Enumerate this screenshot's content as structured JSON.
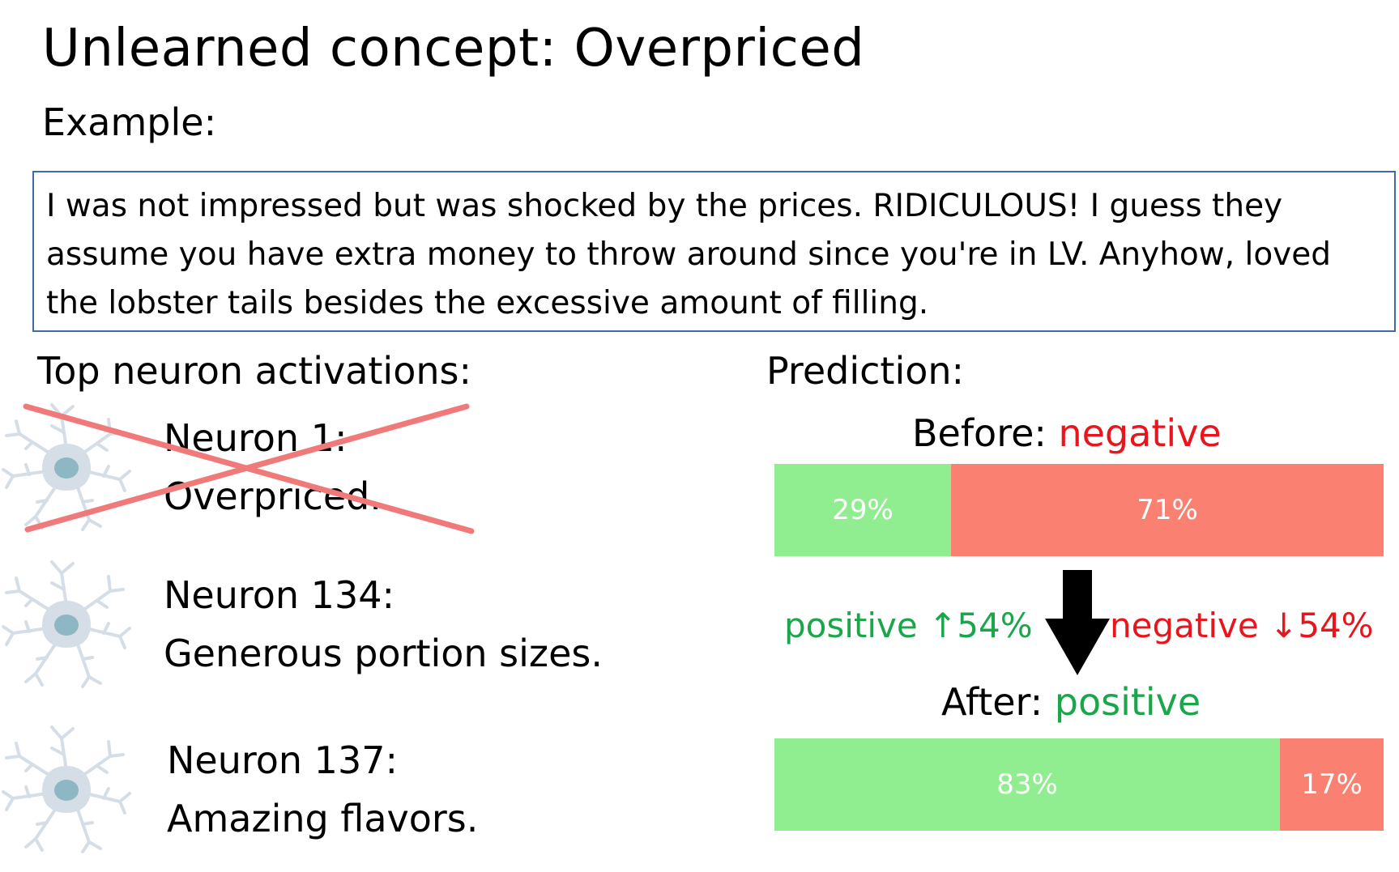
{
  "title": "Unlearned concept: Overpriced",
  "example": {
    "label": "Example:",
    "lines": [
      "I was not impressed but was shocked by the prices. RIDICULOUS!  I guess they",
      "assume you have extra money to throw around since you're in LV. Anyhow, loved",
      "the lobster tails besides the excessive amount of filling."
    ]
  },
  "neurons": {
    "heading": "Top neuron activations:",
    "items": [
      {
        "name": "Neuron 1:",
        "description": "Overpriced.",
        "crossed_out": true,
        "icon": "neuron-icon"
      },
      {
        "name": "Neuron 134:",
        "description": "Generous portion sizes.",
        "crossed_out": false,
        "icon": "neuron-icon"
      },
      {
        "name": "Neuron 137:",
        "description": "Amazing flavors.",
        "crossed_out": false,
        "icon": "neuron-icon"
      }
    ]
  },
  "prediction": {
    "heading": "Prediction:",
    "before": {
      "label": "Before:",
      "value": "negative",
      "positive_pct": 29,
      "negative_pct": 71,
      "positive_text": "29%",
      "negative_text": "71%"
    },
    "change": {
      "positive_text": "positive ↑54%",
      "negative_text": "negative ↓54%"
    },
    "after": {
      "label": "After:",
      "value": "positive",
      "positive_pct": 83,
      "negative_pct": 17,
      "positive_text": "83%",
      "negative_text": "17%"
    }
  },
  "colors": {
    "positive_bar": "#90ee90",
    "negative_bar": "#fa8072",
    "positive_text": "#1aa64a",
    "negative_text": "#e8161c",
    "cross": "#f07a7a",
    "box_border": "#3f6ca8"
  }
}
